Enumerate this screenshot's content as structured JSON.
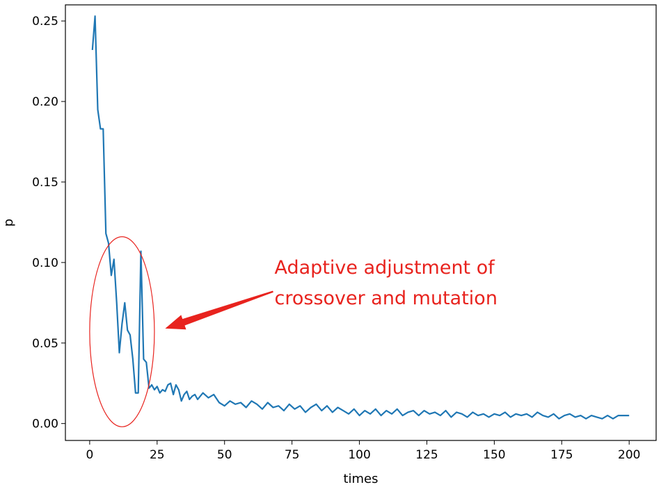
{
  "chart_data": {
    "type": "line",
    "title": "",
    "xlabel": "times",
    "ylabel": "p",
    "xlim": [
      -9,
      210
    ],
    "ylim": [
      -0.0105,
      0.26
    ],
    "xticks": [
      0,
      25,
      50,
      75,
      100,
      125,
      150,
      175,
      200
    ],
    "xtick_labels": [
      "0",
      "25",
      "50",
      "75",
      "100",
      "125",
      "150",
      "175",
      "200"
    ],
    "yticks": [
      0.0,
      0.05,
      0.1,
      0.15,
      0.2,
      0.25
    ],
    "ytick_labels": [
      "0.00",
      "0.05",
      "0.10",
      "0.15",
      "0.20",
      "0.25"
    ],
    "grid": false,
    "series": [
      {
        "name": "p",
        "color": "#1f77b4",
        "x": [
          1,
          2,
          3,
          4,
          5,
          6,
          7,
          8,
          9,
          10,
          11,
          12,
          13,
          14,
          15,
          16,
          17,
          18,
          19,
          20,
          21,
          22,
          23,
          24,
          25,
          26,
          27,
          28,
          29,
          30,
          31,
          32,
          33,
          34,
          35,
          36,
          37,
          38,
          39,
          40,
          42,
          44,
          46,
          48,
          50,
          52,
          54,
          56,
          58,
          60,
          62,
          64,
          66,
          68,
          70,
          72,
          74,
          76,
          78,
          80,
          82,
          84,
          86,
          88,
          90,
          92,
          94,
          96,
          98,
          100,
          102,
          104,
          106,
          108,
          110,
          112,
          114,
          116,
          118,
          120,
          122,
          124,
          126,
          128,
          130,
          132,
          134,
          136,
          138,
          140,
          142,
          144,
          146,
          148,
          150,
          152,
          154,
          156,
          158,
          160,
          162,
          164,
          166,
          168,
          170,
          172,
          174,
          176,
          178,
          180,
          182,
          184,
          186,
          188,
          190,
          192,
          194,
          196,
          198,
          200
        ],
        "values": [
          0.232,
          0.253,
          0.195,
          0.183,
          0.183,
          0.118,
          0.112,
          0.092,
          0.102,
          0.075,
          0.044,
          0.062,
          0.075,
          0.058,
          0.055,
          0.04,
          0.019,
          0.019,
          0.107,
          0.04,
          0.038,
          0.022,
          0.024,
          0.021,
          0.023,
          0.019,
          0.021,
          0.02,
          0.024,
          0.025,
          0.018,
          0.024,
          0.021,
          0.014,
          0.018,
          0.02,
          0.015,
          0.017,
          0.018,
          0.015,
          0.019,
          0.016,
          0.018,
          0.013,
          0.011,
          0.014,
          0.012,
          0.013,
          0.01,
          0.014,
          0.012,
          0.009,
          0.013,
          0.01,
          0.011,
          0.008,
          0.012,
          0.009,
          0.011,
          0.007,
          0.01,
          0.012,
          0.008,
          0.011,
          0.007,
          0.01,
          0.008,
          0.006,
          0.009,
          0.005,
          0.008,
          0.006,
          0.009,
          0.005,
          0.008,
          0.006,
          0.009,
          0.005,
          0.007,
          0.008,
          0.005,
          0.008,
          0.006,
          0.007,
          0.005,
          0.008,
          0.004,
          0.007,
          0.006,
          0.004,
          0.007,
          0.005,
          0.006,
          0.004,
          0.006,
          0.005,
          0.007,
          0.004,
          0.006,
          0.005,
          0.006,
          0.004,
          0.007,
          0.005,
          0.004,
          0.006,
          0.003,
          0.005,
          0.006,
          0.004,
          0.005,
          0.003,
          0.005,
          0.004,
          0.003,
          0.005,
          0.003,
          0.005,
          0.005,
          0.005
        ]
      }
    ],
    "annotations": [
      {
        "text_lines": [
          "Adaptive adjustment of",
          "crossover and mutation"
        ],
        "color": "#e8231e",
        "shape": "ellipse",
        "ellipse_center": [
          12,
          0.057
        ],
        "ellipse_x_radius": 12,
        "ellipse_y_radius": 0.059,
        "arrow_tail": [
          68,
          0.082
        ],
        "arrow_head": [
          28,
          0.059
        ]
      }
    ]
  }
}
